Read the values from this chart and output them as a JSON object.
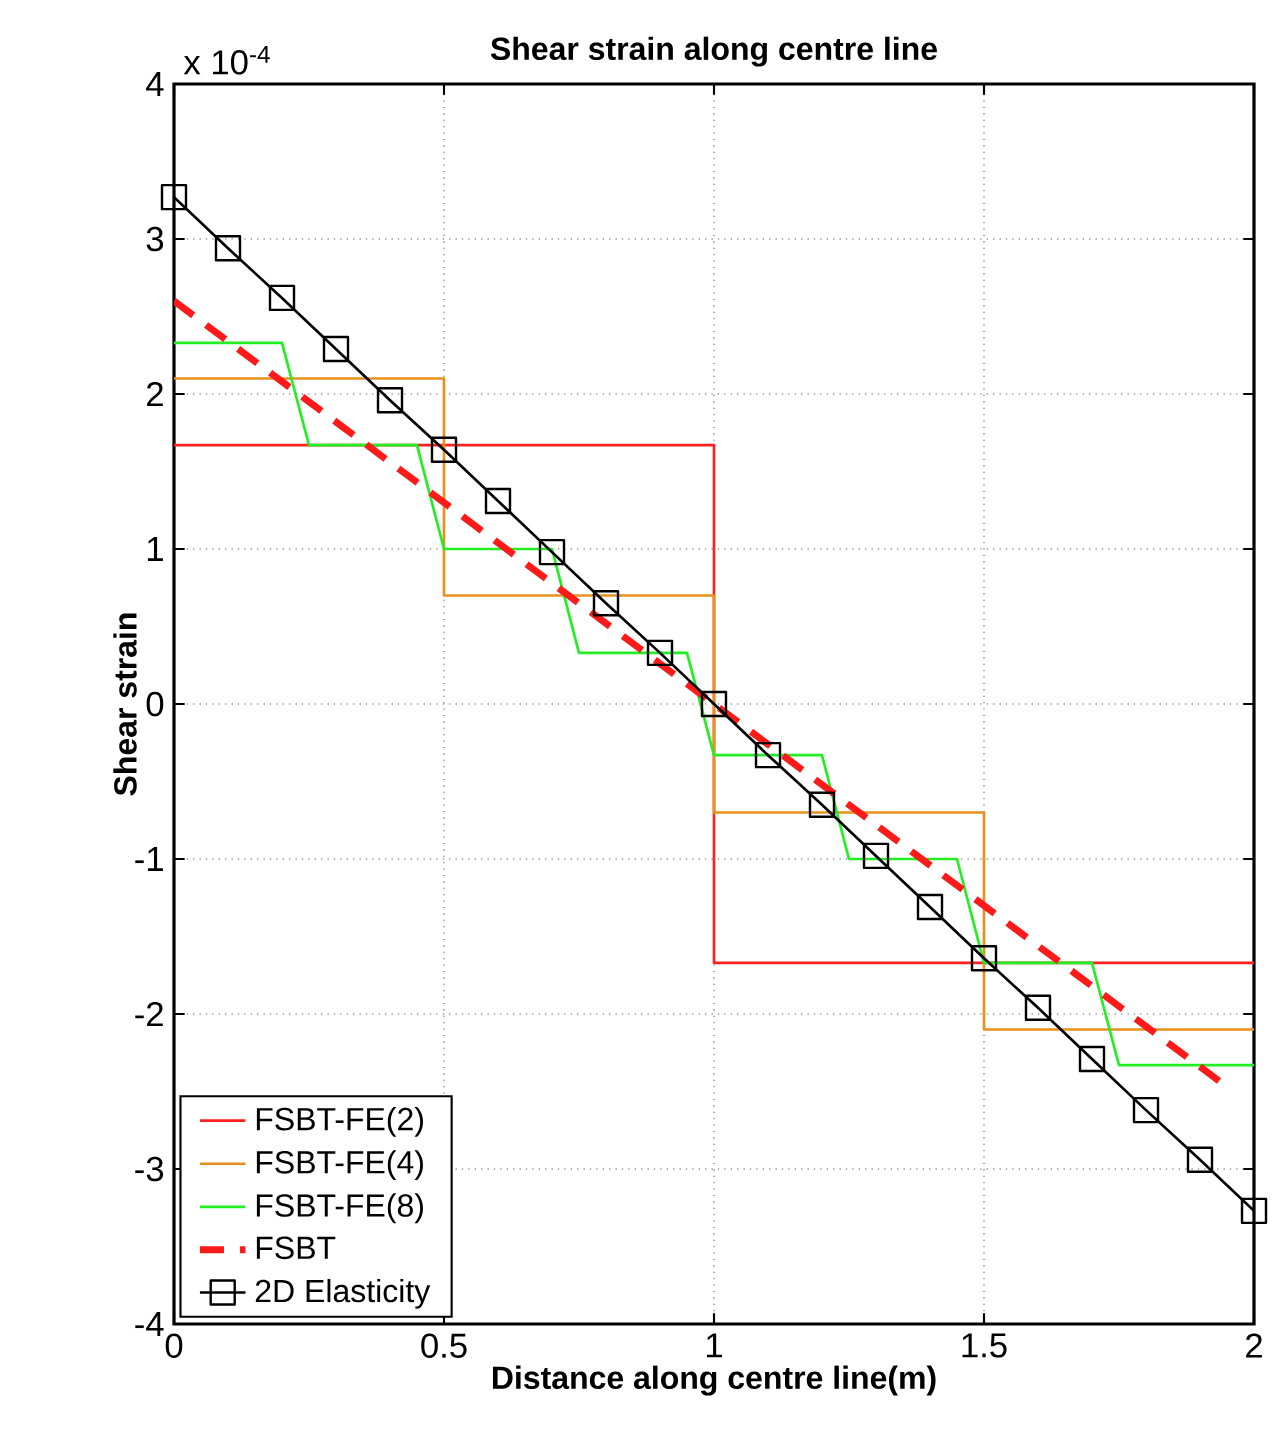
{
  "chart_data": {
    "type": "line",
    "title": "Shear strain along centre line",
    "xlabel": "Distance along centre line(m)",
    "ylabel": "Shear strain",
    "annotations": [
      "x 10$^{-4}$"
    ],
    "xlim": [
      0,
      2
    ],
    "ylim": [
      -4,
      4
    ],
    "xticks": [
      0,
      0.5,
      1,
      1.5,
      2
    ],
    "yticks": [
      -4,
      -3,
      -2,
      -1,
      0,
      1,
      2,
      3,
      4
    ],
    "grid": true,
    "legend": "bottom left",
    "series": [
      {
        "name": "FSBT-FE(2)",
        "type": "step",
        "color": "#ff2020",
        "line_style": "solid",
        "marker": "none",
        "x": [
          0,
          1,
          2
        ],
        "values": [
          1.67,
          -1.67,
          -1.67
        ]
      },
      {
        "name": "FSBT-FE(4)",
        "type": "step",
        "color": "#e8901c",
        "line_style": "solid",
        "marker": "none",
        "x": [
          0,
          0.5,
          1,
          1.5,
          2
        ],
        "values": [
          2.1,
          0.7,
          -0.7,
          -2.1,
          -2.1
        ]
      },
      {
        "name": "FSBT-FE(8)",
        "color": "#22ee22",
        "line_style": "solid",
        "marker": "none",
        "x": [
          0,
          0.2,
          0.25,
          0.45,
          0.5,
          0.7,
          0.75,
          0.95,
          1.0,
          1.2,
          1.25,
          1.45,
          1.5,
          1.7,
          1.75,
          2
        ],
        "values": [
          2.33,
          2.33,
          1.67,
          1.67,
          1.0,
          1.0,
          0.33,
          0.33,
          -0.33,
          -0.33,
          -1.0,
          -1.0,
          -1.67,
          -1.67,
          -2.33,
          -2.33
        ]
      },
      {
        "name": "FSBT",
        "color": "#ff1a1a",
        "line_style": "dashed",
        "marker": "none",
        "x": [
          0,
          1.95
        ],
        "values": [
          2.6,
          -2.47
        ]
      },
      {
        "name": "2D Elasticity",
        "color": "#000000",
        "line_style": "solid",
        "marker": "square",
        "x": [
          0,
          0.1,
          0.2,
          0.3,
          0.4,
          0.5,
          0.6,
          0.7,
          0.8,
          0.9,
          1.0,
          1.1,
          1.2,
          1.3,
          1.4,
          1.5,
          1.6,
          1.7,
          1.8,
          1.9,
          2.0
        ],
        "values": [
          3.27,
          2.94,
          2.62,
          2.29,
          1.96,
          1.64,
          1.31,
          0.98,
          0.65,
          0.33,
          0,
          -0.33,
          -0.65,
          -0.98,
          -1.31,
          -1.64,
          -1.96,
          -2.29,
          -2.62,
          -2.94,
          -3.27
        ]
      }
    ]
  }
}
